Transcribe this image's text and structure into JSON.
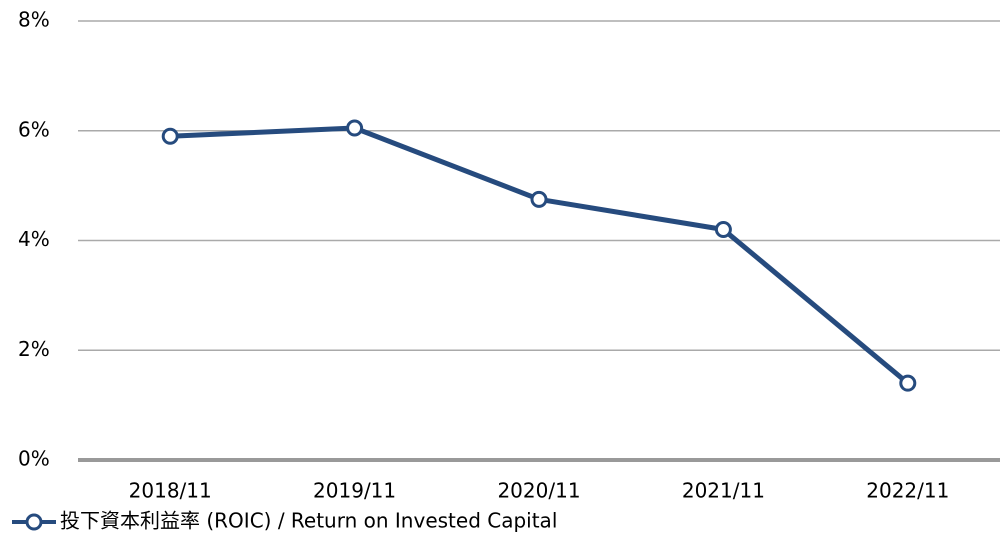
{
  "chart_data": {
    "type": "line",
    "categories": [
      "2018/11",
      "2019/11",
      "2020/11",
      "2021/11",
      "2022/11"
    ],
    "series": [
      {
        "name": "投下資本利益率 (ROIC) / Return on Invested Capital",
        "color": "#264b7e",
        "values": [
          5.9,
          6.05,
          4.75,
          4.2,
          1.4
        ]
      }
    ],
    "ylim": [
      0,
      8
    ],
    "yticks": [
      {
        "value": 0,
        "label": "0%"
      },
      {
        "value": 2,
        "label": "2%"
      },
      {
        "value": 4,
        "label": "4%"
      },
      {
        "value": 6,
        "label": "6%"
      },
      {
        "value": 8,
        "label": "8%"
      }
    ],
    "grid": true,
    "legend": "bottom-left"
  }
}
